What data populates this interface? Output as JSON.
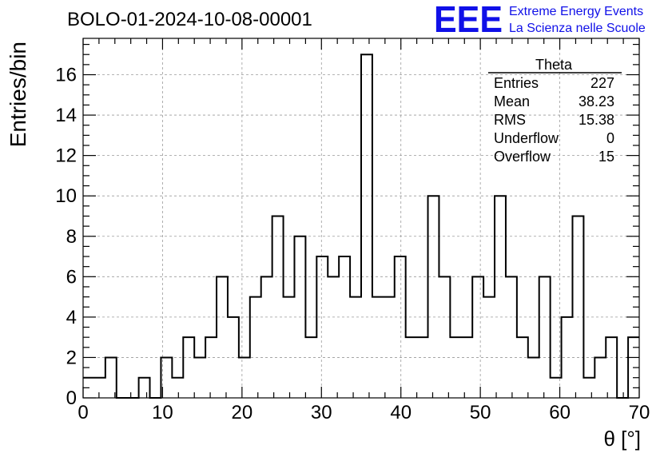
{
  "chart_data": {
    "type": "histogram",
    "title": "BOLO-01-2024-10-08-00001",
    "xlabel": "θ [°]",
    "ylabel": "Entries/bin",
    "xlim": [
      0,
      70
    ],
    "ylim": [
      0,
      17.8
    ],
    "grid": true,
    "x_ticks": [
      0,
      10,
      20,
      30,
      40,
      50,
      60,
      70
    ],
    "y_ticks": [
      0,
      2,
      4,
      6,
      8,
      10,
      12,
      14,
      16
    ],
    "bin_width": 1.4,
    "bin_edges_start": 0,
    "values": [
      1,
      1,
      2,
      0,
      0,
      1,
      0,
      2,
      1,
      3,
      2,
      3,
      6,
      4,
      2,
      5,
      6,
      9,
      5,
      8,
      3,
      7,
      6,
      7,
      5,
      17,
      5,
      5,
      7,
      3,
      3,
      10,
      6,
      3,
      3,
      6,
      5,
      10,
      6,
      3,
      2,
      6,
      1,
      4,
      9,
      1,
      2,
      3,
      0,
      3
    ]
  },
  "stats_box": {
    "name": "Theta",
    "rows": [
      {
        "label": "Entries",
        "value": "227"
      },
      {
        "label": "Mean",
        "value": "38.23"
      },
      {
        "label": "RMS",
        "value": "15.38"
      },
      {
        "label": "Underflow",
        "value": "0"
      },
      {
        "label": "Overflow",
        "value": "15"
      }
    ]
  },
  "logo": {
    "mark": "EEE",
    "line1": "Extreme Energy Events",
    "line2": "La Scienza nelle Scuole",
    "color": "#1010e8"
  },
  "colors": {
    "line": "#000000",
    "grid": "#9a9a9a",
    "background": "#ffffff"
  }
}
